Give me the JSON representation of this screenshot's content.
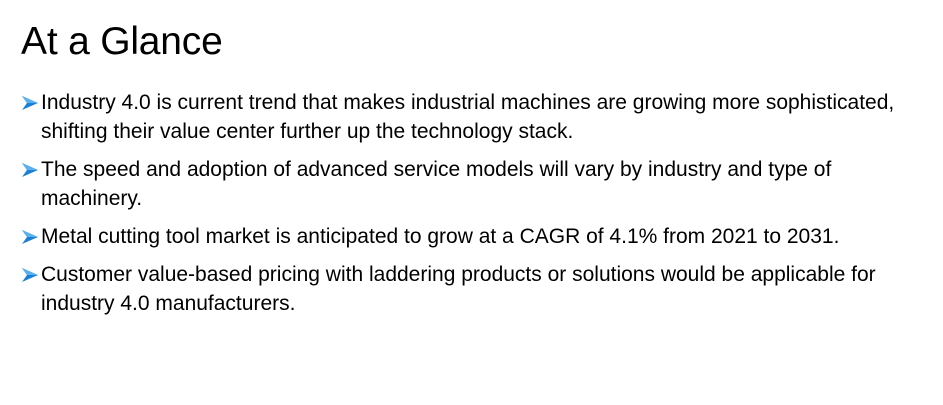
{
  "slide": {
    "title": "At a Glance",
    "bullet_icon": "arrowhead-bullet-icon",
    "accent_color": "#1a80d6",
    "bullets": [
      "Industry 4.0 is current trend that makes industrial machines are growing more sophisticated, shifting their value center further up the technology stack.",
      "The speed and adoption of advanced service models will vary by industry and type of machinery.",
      "Metal cutting tool market is anticipated to grow at a CAGR of 4.1% from 2021 to 2031.",
      "Customer value-based pricing with laddering products or solutions would be applicable for industry 4.0 manufacturers."
    ]
  }
}
